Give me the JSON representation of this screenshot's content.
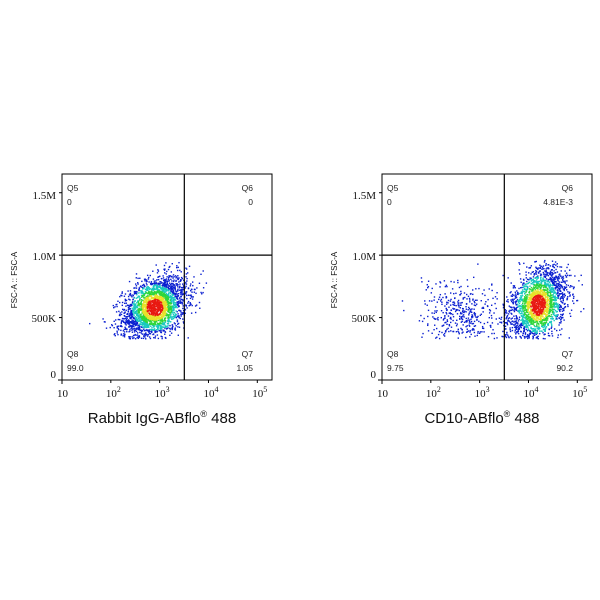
{
  "chart_data": [
    {
      "type": "scatter",
      "title": "",
      "xlabel": "Rabbit IgG-ABflo",
      "xlabel_sup": "®",
      "xlabel_suffix": " 488",
      "ylabel": "FSC-A :: FSC-A",
      "x_scale": "log",
      "xlim": [
        10,
        200000
      ],
      "ylim": [
        0,
        1650000
      ],
      "x_ticks": [
        {
          "base": "10",
          "exp": ""
        },
        {
          "base": "10",
          "exp": "2"
        },
        {
          "base": "10",
          "exp": "3"
        },
        {
          "base": "10",
          "exp": "4"
        },
        {
          "base": "10",
          "exp": "5"
        }
      ],
      "x_tick_values": [
        10,
        100,
        1000,
        10000,
        100000
      ],
      "y_ticks": [
        "0",
        "500K",
        "1.0M",
        "1.5M"
      ],
      "y_tick_values": [
        0,
        500000,
        1000000,
        1500000
      ],
      "gate_x": 3200,
      "gate_y": 1000000,
      "quadrants": [
        {
          "name": "Q5",
          "value": "0",
          "position": "top-left"
        },
        {
          "name": "Q6",
          "value": "0",
          "position": "top-right"
        },
        {
          "name": "Q7",
          "value": "1.05",
          "position": "bottom-right"
        },
        {
          "name": "Q8",
          "value": "99.0",
          "position": "bottom-left"
        }
      ],
      "population": {
        "x_center_log10": 2.9,
        "x_spread_log10": 0.33,
        "y_center": 580000,
        "y_spread": 130000,
        "y_min": 330000,
        "y_max": 950000
      }
    },
    {
      "type": "scatter",
      "title": "",
      "xlabel": "CD10-ABflo",
      "xlabel_sup": "®",
      "xlabel_suffix": " 488",
      "ylabel": "FSC-A :: FSC-A",
      "x_scale": "log",
      "xlim": [
        10,
        200000
      ],
      "ylim": [
        0,
        1650000
      ],
      "x_ticks": [
        {
          "base": "10",
          "exp": ""
        },
        {
          "base": "10",
          "exp": "2"
        },
        {
          "base": "10",
          "exp": "3"
        },
        {
          "base": "10",
          "exp": "4"
        },
        {
          "base": "10",
          "exp": "5"
        }
      ],
      "x_tick_values": [
        10,
        100,
        1000,
        10000,
        100000
      ],
      "y_ticks": [
        "0",
        "500K",
        "1.0M",
        "1.5M"
      ],
      "y_tick_values": [
        0,
        500000,
        1000000,
        1500000
      ],
      "gate_x": 3200,
      "gate_y": 1000000,
      "quadrants": [
        {
          "name": "Q5",
          "value": "0",
          "position": "top-left"
        },
        {
          "name": "Q6",
          "value": "4.81E-3",
          "position": "top-right"
        },
        {
          "name": "Q7",
          "value": "90.2",
          "position": "bottom-right"
        },
        {
          "name": "Q8",
          "value": "9.75",
          "position": "bottom-left"
        }
      ],
      "population": {
        "x_center_log10": 4.2,
        "x_spread_log10": 0.3,
        "y_center": 600000,
        "y_spread": 160000,
        "y_min": 330000,
        "y_max": 960000,
        "minor_x_center_log10": 2.6,
        "minor_x_spread_log10": 0.4,
        "minor_fraction": 0.0975
      }
    }
  ],
  "colors": {
    "axis": "#000000",
    "gate": "#000000",
    "density_low": "#0a1fd0",
    "density_mid": "#18c8c0",
    "density_high_1": "#2fd63a",
    "density_high_2": "#e8e22a",
    "density_peak": "#e81a12"
  }
}
